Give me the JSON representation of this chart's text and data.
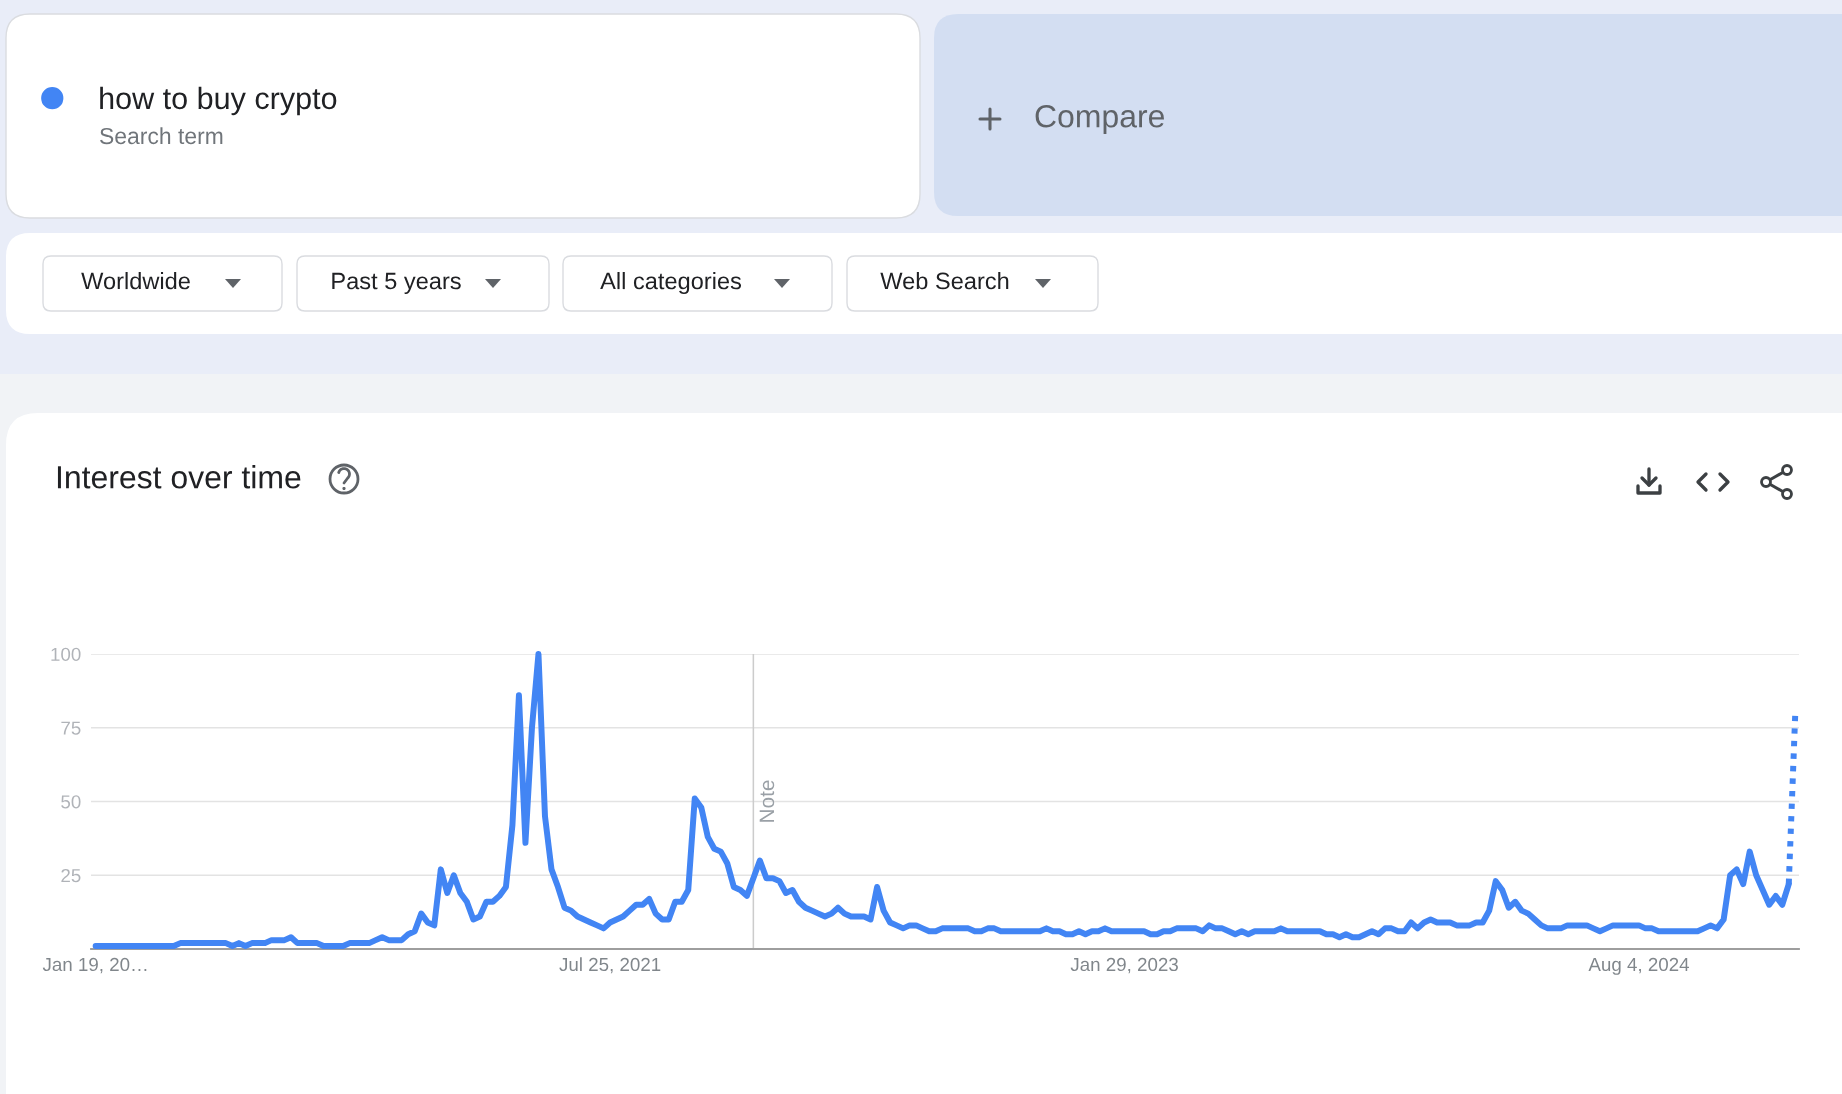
{
  "chart_data": {
    "type": "line",
    "title": "Interest over time",
    "annotations": [
      "Search term",
      "Compare",
      "Worldwide",
      "Past 5 years",
      "All categories",
      "Web Search"
    ],
    "x": [
      "2020-01-19",
      "2020-01-26",
      "2020-02-02",
      "2020-02-09",
      "2020-02-16",
      "2020-02-23",
      "2020-03-01",
      "2020-03-08",
      "2020-03-15",
      "2020-03-22",
      "2020-03-29",
      "2020-04-05",
      "2020-04-12",
      "2020-04-19",
      "2020-04-26",
      "2020-05-03",
      "2020-05-10",
      "2020-05-17",
      "2020-05-24",
      "2020-05-31",
      "2020-06-07",
      "2020-06-14",
      "2020-06-21",
      "2020-06-28",
      "2020-07-05",
      "2020-07-12",
      "2020-07-19",
      "2020-07-26",
      "2020-08-02",
      "2020-08-09",
      "2020-08-16",
      "2020-08-23",
      "2020-08-30",
      "2020-09-06",
      "2020-09-13",
      "2020-09-20",
      "2020-09-27",
      "2020-10-04",
      "2020-10-11",
      "2020-10-18",
      "2020-10-25",
      "2020-11-01",
      "2020-11-08",
      "2020-11-15",
      "2020-11-22",
      "2020-11-29",
      "2020-12-06",
      "2020-12-13",
      "2020-12-20",
      "2020-12-27",
      "2021-01-03",
      "2021-01-10",
      "2021-01-17",
      "2021-01-24",
      "2021-01-31",
      "2021-02-07",
      "2021-02-14",
      "2021-02-21",
      "2021-02-28",
      "2021-03-07",
      "2021-03-14",
      "2021-03-21",
      "2021-03-28",
      "2021-04-04",
      "2021-04-11",
      "2021-04-18",
      "2021-04-25",
      "2021-05-02",
      "2021-05-09",
      "2021-05-16",
      "2021-05-23",
      "2021-05-30",
      "2021-06-06",
      "2021-06-13",
      "2021-06-20",
      "2021-06-27",
      "2021-07-04",
      "2021-07-11",
      "2021-07-18",
      "2021-07-25",
      "2021-08-01",
      "2021-08-08",
      "2021-08-15",
      "2021-08-22",
      "2021-08-29",
      "2021-09-05",
      "2021-09-12",
      "2021-09-19",
      "2021-09-26",
      "2021-10-03",
      "2021-10-10",
      "2021-10-17",
      "2021-10-24",
      "2021-10-31",
      "2021-11-07",
      "2021-11-14",
      "2021-11-21",
      "2021-11-28",
      "2021-12-05",
      "2021-12-12",
      "2021-12-19",
      "2021-12-26",
      "2022-01-02",
      "2022-01-09",
      "2022-01-16",
      "2022-01-23",
      "2022-01-30",
      "2022-02-06",
      "2022-02-13",
      "2022-02-20",
      "2022-02-27",
      "2022-03-06",
      "2022-03-13",
      "2022-03-20",
      "2022-03-27",
      "2022-04-03",
      "2022-04-10",
      "2022-04-17",
      "2022-04-24",
      "2022-05-01",
      "2022-05-08",
      "2022-05-15",
      "2022-05-22",
      "2022-05-29",
      "2022-06-05",
      "2022-06-12",
      "2022-06-19",
      "2022-06-26",
      "2022-07-03",
      "2022-07-10",
      "2022-07-17",
      "2022-07-24",
      "2022-07-31",
      "2022-08-07",
      "2022-08-14",
      "2022-08-21",
      "2022-08-28",
      "2022-09-04",
      "2022-09-11",
      "2022-09-18",
      "2022-09-25",
      "2022-10-02",
      "2022-10-09",
      "2022-10-16",
      "2022-10-23",
      "2022-10-30",
      "2022-11-06",
      "2022-11-13",
      "2022-11-20",
      "2022-11-27",
      "2022-12-04",
      "2022-12-11",
      "2022-12-18",
      "2022-12-25",
      "2023-01-01",
      "2023-01-08",
      "2023-01-15",
      "2023-01-22",
      "2023-01-29",
      "2023-02-05",
      "2023-02-12",
      "2023-02-19",
      "2023-02-26",
      "2023-03-05",
      "2023-03-12",
      "2023-03-19",
      "2023-03-26",
      "2023-04-02",
      "2023-04-09",
      "2023-04-16",
      "2023-04-23",
      "2023-04-30",
      "2023-05-07",
      "2023-05-14",
      "2023-05-21",
      "2023-05-28",
      "2023-06-04",
      "2023-06-11",
      "2023-06-18",
      "2023-06-25",
      "2023-07-02",
      "2023-07-09",
      "2023-07-16",
      "2023-07-23",
      "2023-07-30",
      "2023-08-06",
      "2023-08-13",
      "2023-08-20",
      "2023-08-27",
      "2023-09-03",
      "2023-09-10",
      "2023-09-17",
      "2023-09-24",
      "2023-10-01",
      "2023-10-08",
      "2023-10-15",
      "2023-10-22",
      "2023-10-29",
      "2023-11-05",
      "2023-11-12",
      "2023-11-19",
      "2023-11-26",
      "2023-12-03",
      "2023-12-10",
      "2023-12-17",
      "2023-12-24",
      "2023-12-31",
      "2024-01-07",
      "2024-01-14",
      "2024-01-21",
      "2024-01-28",
      "2024-02-04",
      "2024-02-11",
      "2024-02-18",
      "2024-02-25",
      "2024-03-03",
      "2024-03-10",
      "2024-03-17",
      "2024-03-24",
      "2024-03-31",
      "2024-04-07",
      "2024-04-14",
      "2024-04-21",
      "2024-04-28",
      "2024-05-05",
      "2024-05-12",
      "2024-05-19",
      "2024-05-26",
      "2024-06-02",
      "2024-06-09",
      "2024-06-16",
      "2024-06-23",
      "2024-06-30",
      "2024-07-07",
      "2024-07-14",
      "2024-07-21",
      "2024-07-28",
      "2024-08-04",
      "2024-08-11",
      "2024-08-18",
      "2024-08-25",
      "2024-09-01",
      "2024-09-08",
      "2024-09-15",
      "2024-09-22",
      "2024-09-29",
      "2024-10-06",
      "2024-10-13",
      "2024-10-20",
      "2024-10-27",
      "2024-11-03",
      "2024-11-10",
      "2024-11-17",
      "2024-11-24",
      "2024-12-01",
      "2024-12-08",
      "2024-12-15",
      "2024-12-22",
      "2024-12-29",
      "2025-01-05",
      "2025-01-12"
    ],
    "series": [
      {
        "name": "how to buy crypto",
        "color": "#4285f4",
        "values": [
          1,
          1,
          1,
          1,
          1,
          1,
          1,
          1,
          1,
          1,
          1,
          1,
          1,
          2,
          2,
          2,
          2,
          2,
          2,
          2,
          2,
          1,
          2,
          1,
          2,
          2,
          2,
          3,
          3,
          3,
          4,
          2,
          2,
          2,
          2,
          1,
          1,
          1,
          1,
          2,
          2,
          2,
          2,
          3,
          4,
          3,
          3,
          3,
          5,
          6,
          12,
          9,
          8,
          27,
          19,
          25,
          19,
          16,
          10,
          11,
          16,
          16,
          18,
          21,
          42,
          86,
          36,
          75,
          100,
          45,
          27,
          21,
          14,
          13,
          11,
          10,
          9,
          8,
          7,
          9,
          10,
          11,
          13,
          15,
          15,
          17,
          12,
          10,
          10,
          16,
          16,
          20,
          51,
          48,
          38,
          34,
          33,
          29,
          21,
          20,
          18,
          24,
          30,
          24,
          24,
          23,
          19,
          20,
          16,
          14,
          13,
          12,
          11,
          12,
          14,
          12,
          11,
          11,
          11,
          10,
          21,
          13,
          9,
          8,
          7,
          8,
          8,
          7,
          6,
          6,
          7,
          7,
          7,
          7,
          7,
          6,
          6,
          7,
          7,
          6,
          6,
          6,
          6,
          6,
          6,
          6,
          7,
          6,
          6,
          5,
          5,
          6,
          5,
          6,
          6,
          7,
          6,
          6,
          6,
          6,
          6,
          6,
          5,
          5,
          6,
          6,
          7,
          7,
          7,
          7,
          6,
          8,
          7,
          7,
          6,
          5,
          6,
          5,
          6,
          6,
          6,
          6,
          7,
          6,
          6,
          6,
          6,
          6,
          6,
          5,
          5,
          4,
          5,
          4,
          4,
          5,
          6,
          5,
          7,
          7,
          6,
          6,
          9,
          7,
          9,
          10,
          9,
          9,
          9,
          8,
          8,
          8,
          9,
          9,
          13,
          23,
          20,
          14,
          16,
          13,
          12,
          10,
          8,
          7,
          7,
          7,
          8,
          8,
          8,
          8,
          7,
          6,
          7,
          8,
          8,
          8,
          8,
          8,
          7,
          7,
          6,
          6,
          6,
          6,
          6,
          6,
          6,
          7,
          8,
          7,
          10,
          25,
          27,
          22,
          33,
          25,
          20,
          15,
          18,
          15,
          22
        ]
      },
      {
        "color": "#4285f4",
        "line_style": "dotted",
        "x": [
          "2025-01-12",
          "2025-01-19"
        ],
        "values": [
          22,
          80
        ]
      }
    ],
    "xlim": [
      "2020-01-14",
      "2025-01-23"
    ],
    "xticks": [
      {
        "value": "2020-01-19",
        "label": "Jan 19, 20…"
      },
      {
        "value": "2021-07-25",
        "label": "Jul 25, 2021"
      },
      {
        "value": "2023-01-29",
        "label": "Jan 29, 2023"
      },
      {
        "value": "2024-08-04",
        "label": "Aug 4, 2024"
      }
    ],
    "ylim": [
      0,
      100
    ],
    "yticks": [
      25,
      50,
      75,
      100
    ],
    "ref_lines": [
      {
        "axis": "x",
        "value": "2021-12-26",
        "label": "Note",
        "color": "#cccccc"
      }
    ],
    "grid": "y",
    "legend": "top left"
  }
}
